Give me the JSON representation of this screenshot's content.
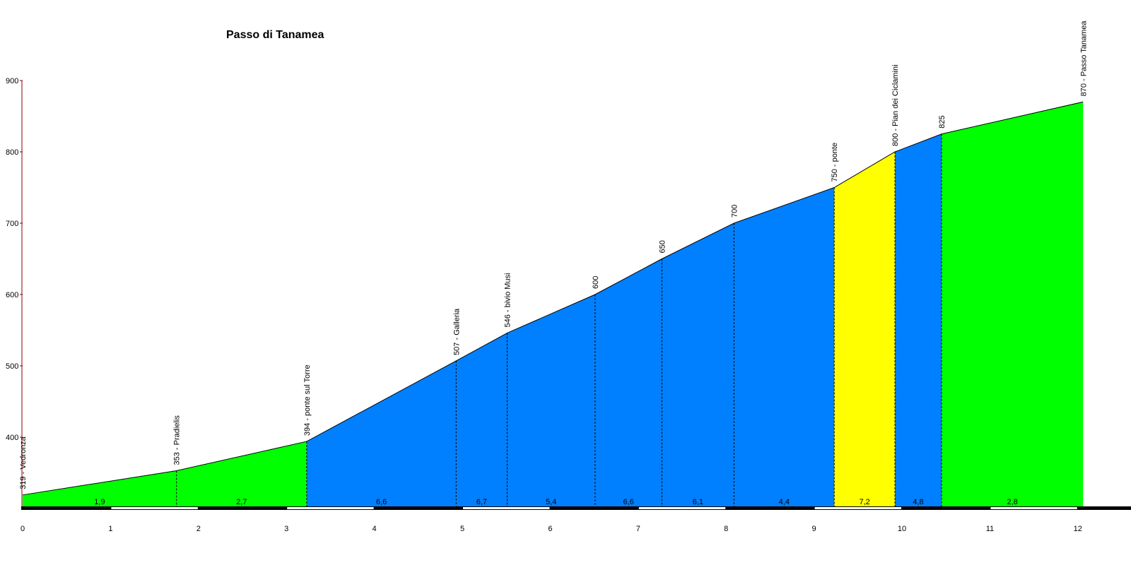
{
  "chart_data": {
    "type": "area",
    "title": "Passo di Tanamea",
    "xlabel": "",
    "ylabel": "",
    "xlim": [
      0,
      12.6
    ],
    "ylim": [
      300,
      900
    ],
    "y_ticks": [
      400,
      500,
      600,
      700,
      800,
      900
    ],
    "x_ticks": [
      0,
      1,
      2,
      3,
      4,
      5,
      6,
      7,
      8,
      9,
      10,
      11,
      12
    ],
    "profile": [
      {
        "km": 0,
        "elev": 319,
        "label": "319 - Vedronza"
      },
      {
        "km": 1.75,
        "elev": 353,
        "label": "353 - Pradielis"
      },
      {
        "km": 3.23,
        "elev": 394,
        "label": "394 - ponte sul Torre"
      },
      {
        "km": 4.93,
        "elev": 507,
        "label": "507 - Galleria"
      },
      {
        "km": 5.51,
        "elev": 546,
        "label": "546 - bivio Musi"
      },
      {
        "km": 6.51,
        "elev": 600,
        "label": "600"
      },
      {
        "km": 7.27,
        "elev": 650,
        "label": "650"
      },
      {
        "km": 8.09,
        "elev": 700,
        "label": "700"
      },
      {
        "km": 9.23,
        "elev": 750,
        "label": "750 - ponte"
      },
      {
        "km": 9.92,
        "elev": 800,
        "label": "800 - Pian dei Ciclamini"
      },
      {
        "km": 10.45,
        "elev": 825,
        "label": "825"
      },
      {
        "km": 12.06,
        "elev": 870,
        "label": "870 - Passo Tanamea"
      }
    ],
    "segments": [
      {
        "gradient": "1,9",
        "color": "#00ff00"
      },
      {
        "gradient": "2,7",
        "color": "#00ff00"
      },
      {
        "gradient": "6,6",
        "color": "#0080ff"
      },
      {
        "gradient": "6,7",
        "color": "#0080ff"
      },
      {
        "gradient": "5,4",
        "color": "#0080ff"
      },
      {
        "gradient": "6,6",
        "color": "#0080ff"
      },
      {
        "gradient": "6,1",
        "color": "#0080ff"
      },
      {
        "gradient": "4,4",
        "color": "#0080ff"
      },
      {
        "gradient": "7,2",
        "color": "#ffff00"
      },
      {
        "gradient": "4,8",
        "color": "#0080ff"
      },
      {
        "gradient": "2,8",
        "color": "#00ff00"
      }
    ],
    "axis_color": "#8b0000",
    "grid": false
  }
}
